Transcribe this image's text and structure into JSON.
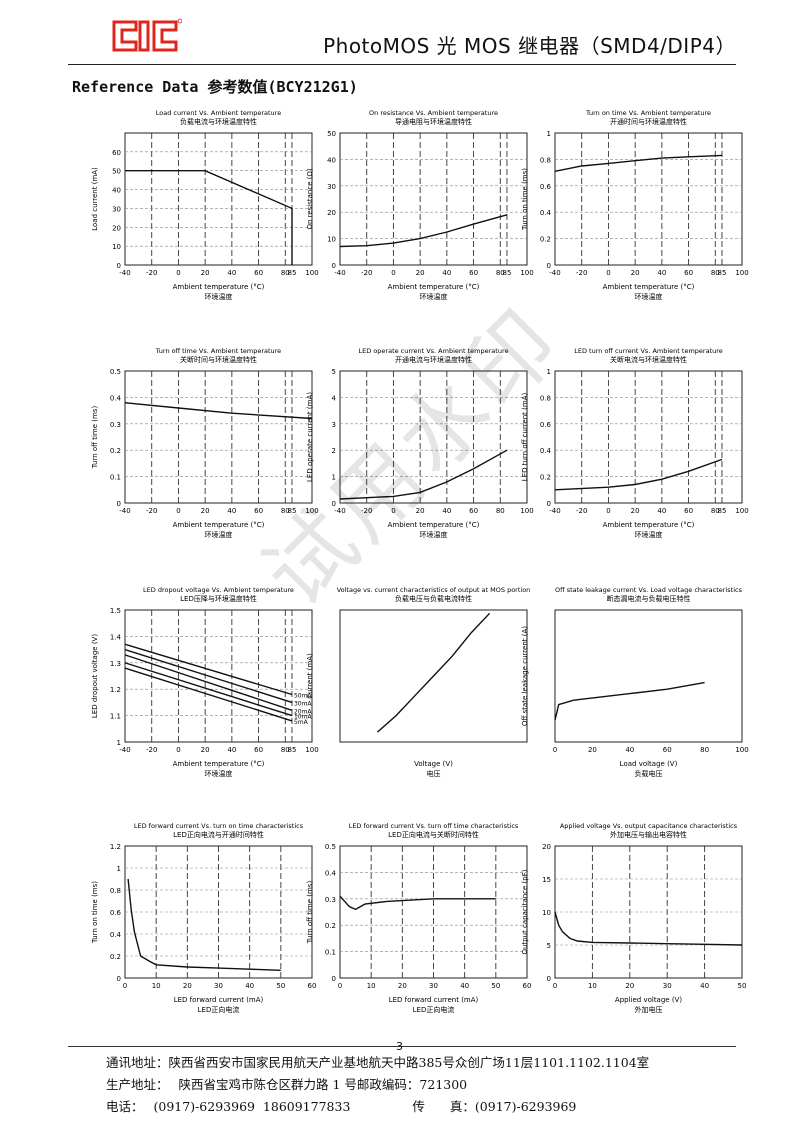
{
  "header": {
    "logo_text": "QC",
    "title": "PhotoMOS 光 MOS 继电器（SMD4/DIP4）",
    "brand_color": "#e0241b"
  },
  "section_title": "Reference Data 参考数值(BCY212G1)",
  "watermark": "试用水印",
  "page_number": "3",
  "footer": {
    "address": "通讯地址：陕西省西安市国家民用航天产业基地航天中路385号众创广场11层1101.1102.1104室",
    "factory_label": "生产地址：",
    "factory": "陕西省宝鸡市陈仓区群力路 1 号邮政编码：721300",
    "phone_label": "电话：",
    "phone": "(0917)-6293969  18609177833",
    "fax_label": "传　　真：",
    "fax": "(0917)-6293969"
  },
  "chart_data": [
    {
      "type": "line",
      "title": "Load current Vs. Ambient temperature",
      "subtitle": "负载电流与环境温度特性",
      "xlabel": "Ambient temperature (°C)",
      "xlabel_cn": "环境温度",
      "ylabel": "Load current (mA)",
      "xlim": [
        -40,
        100
      ],
      "ylim": [
        0,
        70
      ],
      "xticks": [
        -40,
        -20,
        0,
        20,
        40,
        60,
        80,
        85,
        100
      ],
      "yticks": [
        0,
        10,
        20,
        30,
        40,
        50,
        60
      ],
      "grid": true,
      "series": [
        {
          "x": [
            -40,
            20,
            85,
            85
          ],
          "y": [
            50,
            50,
            30,
            0
          ]
        }
      ]
    },
    {
      "type": "line",
      "title": "On resistance Vs. Ambient temperature",
      "subtitle": "导通电阻与环境温度特性",
      "xlabel": "Ambient temperature (°C)",
      "xlabel_cn": "环境温度",
      "ylabel": "On resistance (Ω)",
      "xlim": [
        -40,
        100
      ],
      "ylim": [
        0,
        50
      ],
      "xticks": [
        -40,
        -20,
        0,
        20,
        40,
        60,
        80,
        85,
        100
      ],
      "yticks": [
        0,
        10,
        20,
        30,
        40,
        50
      ],
      "grid": true,
      "series": [
        {
          "x": [
            -40,
            -20,
            0,
            20,
            40,
            60,
            85
          ],
          "y": [
            7,
            7.3,
            8.3,
            10,
            12.5,
            15.5,
            19
          ]
        }
      ]
    },
    {
      "type": "line",
      "title": "Turn on time Vs. Ambient temperature",
      "subtitle": "开通时间与环境温度特性",
      "xlabel": "Ambient temperature (°C)",
      "xlabel_cn": "环境温度",
      "ylabel": "Turn on time (ms)",
      "xlim": [
        -40,
        100
      ],
      "ylim": [
        0,
        1
      ],
      "xticks": [
        -40,
        -20,
        0,
        20,
        40,
        60,
        80,
        85,
        100
      ],
      "yticks": [
        0,
        0.2,
        0.4,
        0.6,
        0.8,
        1
      ],
      "grid": true,
      "series": [
        {
          "x": [
            -40,
            -20,
            0,
            20,
            40,
            60,
            85
          ],
          "y": [
            0.71,
            0.75,
            0.77,
            0.79,
            0.81,
            0.82,
            0.83
          ]
        }
      ]
    },
    {
      "type": "line",
      "title": "Turn off time Vs. Ambient temperature",
      "subtitle": "关断时间与环境温度特性",
      "xlabel": "Ambient temperature (°C)",
      "xlabel_cn": "环境温度",
      "ylabel": "Turn off time (ms)",
      "xlim": [
        -40,
        100
      ],
      "ylim": [
        0,
        0.5
      ],
      "xticks": [
        -40,
        -20,
        0,
        20,
        40,
        60,
        80,
        85,
        100
      ],
      "yticks": [
        0,
        0.1,
        0.2,
        0.3,
        0.4,
        0.5
      ],
      "grid": true,
      "series": [
        {
          "x": [
            -40,
            0,
            40,
            100
          ],
          "y": [
            0.38,
            0.36,
            0.34,
            0.32
          ]
        }
      ]
    },
    {
      "type": "line",
      "title": "LED operate current Vs. Ambient temperature",
      "subtitle": "开通电流与环境温度特性",
      "xlabel": "Ambient temperature (°C)",
      "xlabel_cn": "环境温度",
      "ylabel": "LED operate current (mA)",
      "xlim": [
        -40,
        100
      ],
      "ylim": [
        0,
        5
      ],
      "xticks": [
        -40,
        -20,
        0,
        20,
        40,
        60,
        80,
        100
      ],
      "yticks": [
        0,
        1,
        2,
        3,
        4,
        5
      ],
      "grid": true,
      "series": [
        {
          "x": [
            -40,
            -20,
            0,
            20,
            40,
            60,
            85
          ],
          "y": [
            0.15,
            0.2,
            0.25,
            0.4,
            0.8,
            1.3,
            2.0
          ]
        }
      ]
    },
    {
      "type": "line",
      "title": "LED turn off current Vs. Ambient temperature",
      "subtitle": "关断电流与环境温度特性",
      "xlabel": "Ambient temperature (°C)",
      "xlabel_cn": "环境温度",
      "ylabel": "LED turn off current (mA)",
      "xlim": [
        -40,
        100
      ],
      "ylim": [
        0,
        1
      ],
      "xticks": [
        -40,
        -20,
        0,
        20,
        40,
        60,
        80,
        85,
        100
      ],
      "yticks": [
        0,
        0.2,
        0.4,
        0.6,
        0.8,
        1
      ],
      "grid": true,
      "series": [
        {
          "x": [
            -40,
            0,
            20,
            40,
            60,
            85
          ],
          "y": [
            0.1,
            0.12,
            0.14,
            0.18,
            0.24,
            0.33
          ]
        }
      ]
    },
    {
      "type": "line",
      "title": "LED dropout voltage Vs. Ambient temperature",
      "subtitle": "LED压降与环境温度特性",
      "xlabel": "Ambient temperature (°C)",
      "xlabel_cn": "环境温度",
      "ylabel": "LED dropout voltage (V)",
      "xlim": [
        -40,
        100
      ],
      "ylim": [
        1,
        1.5
      ],
      "xticks": [
        -40,
        -20,
        0,
        20,
        40,
        60,
        80,
        85,
        100
      ],
      "yticks": [
        1.0,
        1.1,
        1.2,
        1.3,
        1.4,
        1.5
      ],
      "grid": true,
      "series": [
        {
          "name": "50mA",
          "x": [
            -40,
            85
          ],
          "y": [
            1.37,
            1.18
          ]
        },
        {
          "name": "30mA",
          "x": [
            -40,
            85
          ],
          "y": [
            1.35,
            1.15
          ]
        },
        {
          "name": "20mA",
          "x": [
            -40,
            85
          ],
          "y": [
            1.33,
            1.12
          ]
        },
        {
          "name": "10mA",
          "x": [
            -40,
            85
          ],
          "y": [
            1.3,
            1.1
          ]
        },
        {
          "name": "5mA",
          "x": [
            -40,
            85
          ],
          "y": [
            1.28,
            1.08
          ]
        }
      ]
    },
    {
      "type": "line",
      "title": "Voltage vs. current characteristics of output at MOS portion",
      "subtitle": "负载电压与负载电流特性",
      "xlabel": "Voltage (V)",
      "xlabel_cn": "电压",
      "ylabel": "Current (mA)",
      "xlim": [
        -5,
        5
      ],
      "ylim": [
        -100,
        100
      ],
      "grid": true,
      "series": [
        {
          "x": [
            -3,
            -2,
            -1,
            0,
            1,
            2,
            3
          ],
          "y": [
            -85,
            -60,
            -30,
            0,
            30,
            65,
            95
          ]
        }
      ]
    },
    {
      "type": "line",
      "title": "Off state leakage current Vs. Load voltage characteristics",
      "subtitle": "断态漏电流与负载电压特性",
      "xlabel": "Load voltage (V)",
      "xlabel_cn": "负载电压",
      "ylabel": "Off state leakage current (A)",
      "xlim": [
        0,
        100
      ],
      "ylim": [
        -12,
        -6
      ],
      "xticks": [
        0,
        20,
        40,
        60,
        80,
        100
      ],
      "grid": false,
      "series": [
        {
          "x": [
            0,
            2,
            10,
            40,
            60,
            80
          ],
          "y": [
            -11,
            -10.3,
            -10.1,
            -9.8,
            -9.6,
            -9.3
          ]
        }
      ]
    },
    {
      "type": "line",
      "title": "LED forward current Vs. turn on time characteristics",
      "subtitle": "LED正向电流与开通时间特性",
      "xlabel": "LED forward current (mA)",
      "xlabel_cn": "LED正向电流",
      "ylabel": "Turn on time (ms)",
      "xlim": [
        0,
        60
      ],
      "ylim": [
        0,
        1.2
      ],
      "xticks": [
        0,
        10,
        20,
        30,
        40,
        50,
        60
      ],
      "yticks": [
        0,
        0.2,
        0.4,
        0.6,
        0.8,
        1.0,
        1.2
      ],
      "grid": true,
      "series": [
        {
          "x": [
            1,
            2,
            3,
            5,
            8,
            10,
            20,
            30,
            40,
            50
          ],
          "y": [
            0.9,
            0.62,
            0.42,
            0.2,
            0.15,
            0.12,
            0.1,
            0.09,
            0.08,
            0.07
          ]
        }
      ]
    },
    {
      "type": "line",
      "title": "LED forward current Vs. turn off time characteristics",
      "subtitle": "LED正向电流与关断时间特性",
      "xlabel": "LED forward current (mA)",
      "xlabel_cn": "LED正向电流",
      "ylabel": "Turn off time (ms)",
      "xlim": [
        0,
        60
      ],
      "ylim": [
        0,
        0.5
      ],
      "xticks": [
        0,
        10,
        20,
        30,
        40,
        50,
        60
      ],
      "yticks": [
        0,
        0.1,
        0.2,
        0.3,
        0.4,
        0.5
      ],
      "grid": true,
      "series": [
        {
          "x": [
            0,
            3,
            5,
            8,
            15,
            30,
            50
          ],
          "y": [
            0.31,
            0.27,
            0.26,
            0.28,
            0.29,
            0.3,
            0.3
          ]
        }
      ]
    },
    {
      "type": "line",
      "title": "Applied voltage Vs. output capacitance characteristics",
      "subtitle": "外加电压与输出电容特性",
      "xlabel": "Applied voltage (V)",
      "xlabel_cn": "外加电压",
      "ylabel": "Output capacitance (pF)",
      "xlim": [
        0,
        50
      ],
      "ylim": [
        0,
        20
      ],
      "xticks": [
        0,
        10,
        20,
        30,
        40,
        50
      ],
      "yticks": [
        0,
        5,
        10,
        15,
        20
      ],
      "grid": true,
      "series": [
        {
          "x": [
            0,
            1,
            2,
            4,
            6,
            10,
            20,
            30,
            40,
            50
          ],
          "y": [
            10,
            8,
            7,
            6,
            5.6,
            5.4,
            5.3,
            5.2,
            5.1,
            5.0
          ]
        }
      ]
    }
  ]
}
